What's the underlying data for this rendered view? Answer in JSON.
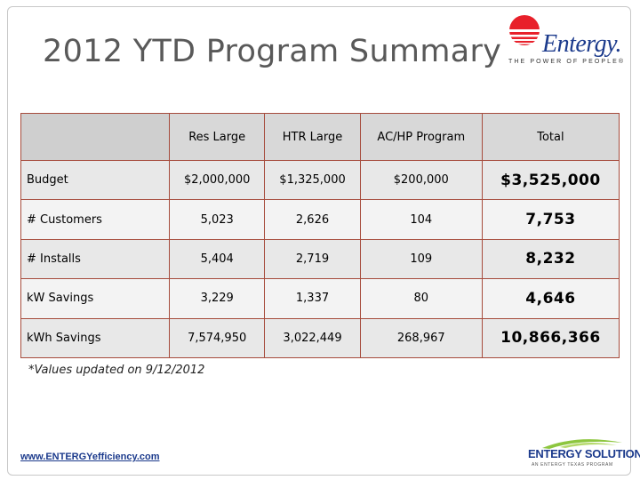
{
  "slide": {
    "title": "2012 YTD Program Summary",
    "note": "*Values updated on 9/12/2012",
    "url": "www.ENTERGYefficiency.com"
  },
  "logo": {
    "name": "Entergy.",
    "tagline": "THE POWER OF PEOPLE®",
    "colors": {
      "sun": "#e8202a",
      "text": "#1b3a8c"
    }
  },
  "footer_logo": {
    "name": "ENTERGY SOLUTIONS",
    "tagline": "AN ENTERGY TEXAS PROGRAM",
    "colors": {
      "swoosh": "#8dc63f",
      "text": "#1b3a8c"
    }
  },
  "table": {
    "headers": [
      "",
      "Res Large",
      "HTR Large",
      "AC/HP Program",
      "Total"
    ],
    "rows": [
      {
        "label": "Budget",
        "values": [
          "$2,000,000",
          "$1,325,000",
          "$200,000"
        ],
        "total": "$3,525,000"
      },
      {
        "label": "# Customers",
        "values": [
          "5,023",
          "2,626",
          "104"
        ],
        "total": "7,753"
      },
      {
        "label": "# Installs",
        "values": [
          "5,404",
          "2,719",
          "109"
        ],
        "total": "8,232"
      },
      {
        "label": "kW Savings",
        "values": [
          "3,229",
          "1,337",
          "80"
        ],
        "total": "4,646"
      },
      {
        "label": "kWh Savings",
        "values": [
          "7,574,950",
          "3,022,449",
          "268,967"
        ],
        "total": "10,866,366"
      }
    ],
    "colors": {
      "border": "#a64b3c",
      "header_bg": "#d8d8d8"
    }
  }
}
